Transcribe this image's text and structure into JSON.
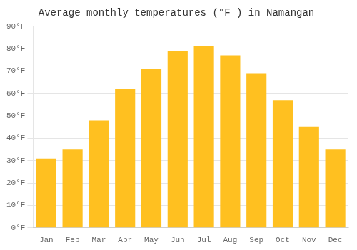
{
  "chart_data": {
    "type": "bar",
    "title": "Average monthly temperatures (°F ) in Namangan",
    "categories": [
      "Jan",
      "Feb",
      "Mar",
      "Apr",
      "May",
      "Jun",
      "Jul",
      "Aug",
      "Sep",
      "Oct",
      "Nov",
      "Dec"
    ],
    "values": [
      31,
      35,
      48,
      62,
      71,
      79,
      81,
      77,
      69,
      57,
      45,
      35
    ],
    "color": "#FFC020",
    "ylim": [
      0,
      90
    ],
    "yticks": [
      {
        "value": 0,
        "label": "0°F"
      },
      {
        "value": 10,
        "label": "10°F"
      },
      {
        "value": 20,
        "label": "20°F"
      },
      {
        "value": 30,
        "label": "30°F"
      },
      {
        "value": 40,
        "label": "40°F"
      },
      {
        "value": 50,
        "label": "50°F"
      },
      {
        "value": 60,
        "label": "60°F"
      },
      {
        "value": 70,
        "label": "70°F"
      },
      {
        "value": 80,
        "label": "80°F"
      },
      {
        "value": 90,
        "label": "90°F"
      }
    ],
    "grid": true
  }
}
